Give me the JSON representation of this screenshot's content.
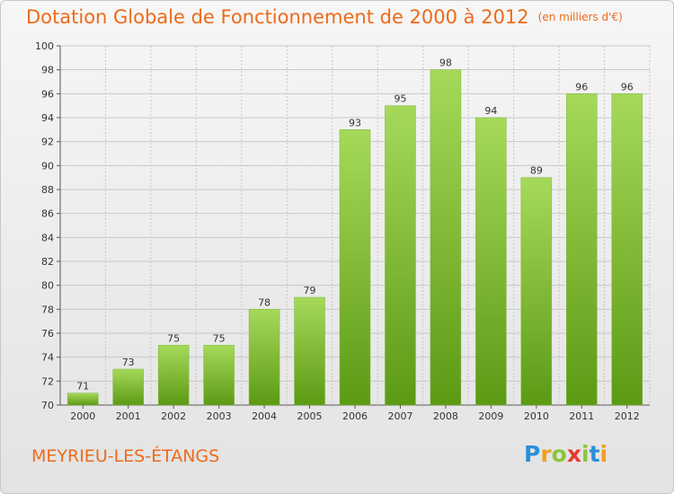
{
  "title": "Dotation Globale de Fonctionnement de 2000 à 2012",
  "subtitle": "(en milliers d'€)",
  "commune": "MEYRIEU-LES-ÉTANGS",
  "logo": {
    "letters": [
      "P",
      "r",
      "o",
      "x",
      "i",
      "t",
      "i"
    ],
    "colors": [
      "#2a8fd8",
      "#f0a020",
      "#8cc43c",
      "#e63a2e",
      "#8cc43c",
      "#2a8fd8",
      "#f0a020"
    ]
  },
  "colors": {
    "title": "#ee6a1a",
    "bar_light": "#a6d95a",
    "bar_dark": "#5c9a14",
    "grid": "#c8c8c8"
  },
  "chart_data": {
    "type": "bar",
    "title": "Dotation Globale de Fonctionnement de 2000 à 2012",
    "subtitle": "(en milliers d'€)",
    "categories": [
      "2000",
      "2001",
      "2002",
      "2003",
      "2004",
      "2005",
      "2006",
      "2007",
      "2008",
      "2009",
      "2010",
      "2011",
      "2012"
    ],
    "values": [
      71,
      73,
      75,
      75,
      78,
      79,
      93,
      95,
      98,
      94,
      89,
      96,
      96
    ],
    "ylim": [
      70,
      100
    ],
    "yticks": [
      70,
      72,
      74,
      76,
      78,
      80,
      82,
      84,
      86,
      88,
      90,
      92,
      94,
      96,
      98,
      100
    ],
    "xlabel": "",
    "ylabel": "",
    "grid": true
  }
}
